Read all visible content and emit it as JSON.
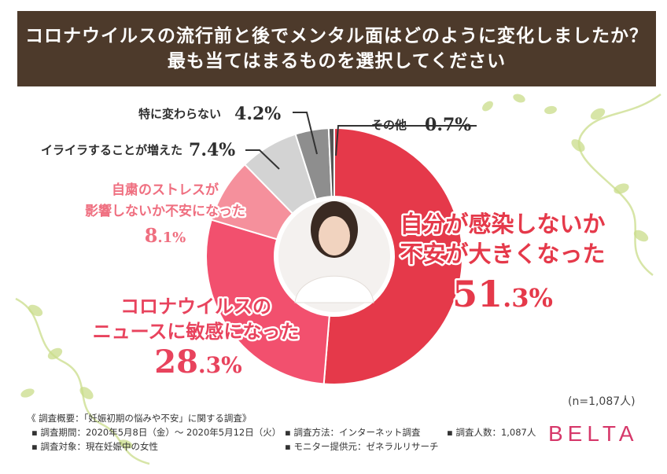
{
  "title_line1": "コロナウイルスの流行前と後でメンタル面はどのように変化しましたか？",
  "title_line2": "最も当てはまるものを選択してください",
  "sample_note": "(n=1,087人)",
  "brand": "BELTA",
  "footer": {
    "heading": "《 調査概要：「妊娠初期の悩みや不安」に関する調査》",
    "period": "▪ 調査期間：2020年5月8日（金）～ 2020年5月12日（火）",
    "target": "▪ 調査対象：現在妊娠中の女性",
    "method": "▪ 調査方法：インターネット調査",
    "provider": "▪ モニター提供元：ゼネラルリサーチ",
    "count": "▪ 調査人数：1,087人"
  },
  "chart_data": {
    "type": "pie",
    "title": "コロナウイルスの流行前と後でメンタル面はどのように変化しましたか？最も当てはまるものを選択してください",
    "start": "top",
    "direction": "clockwise",
    "slices": [
      {
        "label": "自分が感染しないか不安が大きくなった",
        "lines": [
          "自分が感染しないか",
          "不安が大きくなった"
        ],
        "pct_num": "51",
        "pct_dec": ".3%",
        "value": 51.3,
        "color": "#e5394a"
      },
      {
        "label": "コロナウイルスのニュースに敏感になった",
        "lines": [
          "コロナウイルスの",
          "ニュースに敏感になった"
        ],
        "pct_num": "28",
        "pct_dec": ".3%",
        "value": 28.3,
        "color": "#f2506e"
      },
      {
        "label": "自粛のストレスが影響しないか不安になった",
        "lines": [
          "自粛のストレスが",
          "影響しないか不安になった"
        ],
        "pct_num": "8",
        "pct_dec": ".1%",
        "value": 8.1,
        "color": "#f5909c"
      },
      {
        "label": "イライラすることが増えた",
        "lines": [
          "イライラすることが増えた"
        ],
        "pct_num": "7",
        "pct_dec": ".4%",
        "value": 7.4,
        "color": "#d3d3d3"
      },
      {
        "label": "特に変わらない",
        "lines": [
          "特に変わらない"
        ],
        "pct_num": "4",
        "pct_dec": ".2%",
        "value": 4.2,
        "color": "#8e8e8e"
      },
      {
        "label": "その他",
        "lines": [
          "その他"
        ],
        "pct_num": "0",
        "pct_dec": ".7%",
        "value": 0.7,
        "color": "#555555"
      }
    ]
  }
}
